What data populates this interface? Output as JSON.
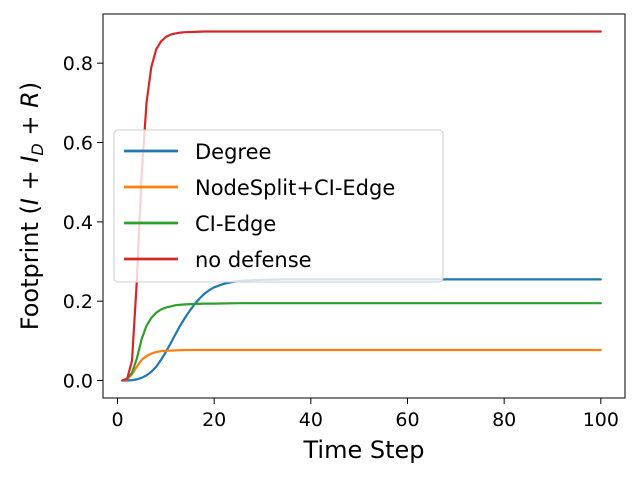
{
  "chart_data": {
    "type": "line",
    "xlabel": "Time Step",
    "ylabel": "Footprint (I + I_D + R)",
    "ylabel_parts": {
      "pre": "Footprint (",
      "i1": "I",
      "plus1": " + ",
      "i2": "I",
      "sub": "D",
      "plus2": " + ",
      "r": "R",
      "post": ")"
    },
    "xlim": [
      -3,
      105
    ],
    "ylim": [
      -0.044,
      0.924
    ],
    "xticks": [
      0,
      20,
      40,
      60,
      80,
      100
    ],
    "xtick_labels": [
      "0",
      "20",
      "40",
      "60",
      "80",
      "100"
    ],
    "yticks": [
      0.0,
      0.2,
      0.4,
      0.6,
      0.8
    ],
    "ytick_labels": [
      "0.0",
      "0.2",
      "0.4",
      "0.6",
      "0.8"
    ],
    "grid": false,
    "legend_position": "center-left",
    "series": [
      {
        "name": "Degree",
        "color": "#1f77b4",
        "x": [
          1,
          2,
          3,
          4,
          5,
          6,
          7,
          8,
          9,
          10,
          11,
          12,
          13,
          14,
          15,
          16,
          17,
          18,
          19,
          20,
          22,
          24,
          26,
          28,
          30,
          34,
          40,
          50,
          60,
          80,
          100
        ],
        "y": [
          0.0,
          0.0,
          0.001,
          0.003,
          0.007,
          0.013,
          0.022,
          0.035,
          0.052,
          0.072,
          0.094,
          0.117,
          0.139,
          0.159,
          0.177,
          0.193,
          0.207,
          0.219,
          0.228,
          0.235,
          0.244,
          0.249,
          0.252,
          0.253,
          0.254,
          0.255,
          0.255,
          0.255,
          0.255,
          0.255,
          0.255
        ]
      },
      {
        "name": "NodeSplit+CI-Edge",
        "color": "#ff7f0e",
        "x": [
          1,
          2,
          3,
          4,
          5,
          6,
          7,
          8,
          9,
          10,
          12,
          14,
          16,
          20,
          30,
          50,
          100
        ],
        "y": [
          0.0,
          0.003,
          0.016,
          0.035,
          0.052,
          0.062,
          0.068,
          0.072,
          0.074,
          0.075,
          0.076,
          0.077,
          0.077,
          0.077,
          0.077,
          0.077,
          0.077
        ]
      },
      {
        "name": "CI-Edge",
        "color": "#2ca02c",
        "x": [
          1,
          2,
          3,
          4,
          5,
          6,
          7,
          8,
          9,
          10,
          11,
          12,
          14,
          16,
          18,
          20,
          25,
          30,
          50,
          100
        ],
        "y": [
          0.0,
          0.004,
          0.02,
          0.055,
          0.105,
          0.138,
          0.158,
          0.171,
          0.179,
          0.184,
          0.187,
          0.19,
          0.192,
          0.193,
          0.194,
          0.194,
          0.195,
          0.195,
          0.195,
          0.195
        ]
      },
      {
        "name": "no defense",
        "color": "#d62728",
        "x": [
          1,
          2,
          3,
          4,
          5,
          6,
          7,
          8,
          9,
          10,
          11,
          12,
          13,
          14,
          16,
          18,
          20,
          25,
          30,
          50,
          100
        ],
        "y": [
          0.0,
          0.005,
          0.05,
          0.25,
          0.52,
          0.7,
          0.79,
          0.835,
          0.855,
          0.866,
          0.872,
          0.875,
          0.877,
          0.878,
          0.879,
          0.88,
          0.88,
          0.88,
          0.88,
          0.88,
          0.88
        ]
      }
    ]
  }
}
